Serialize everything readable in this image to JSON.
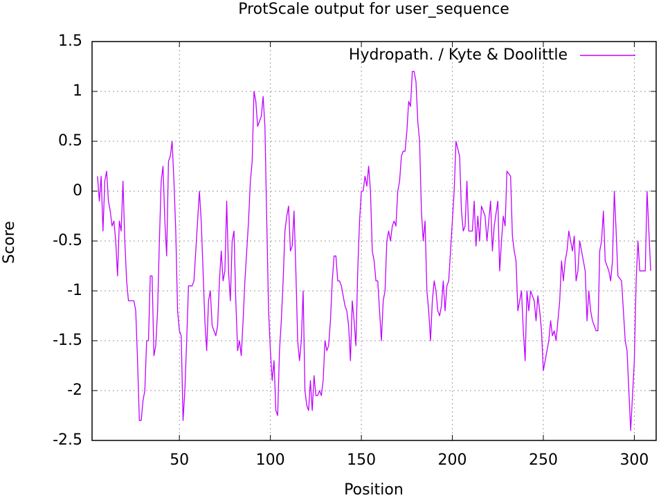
{
  "chart_data": {
    "type": "line",
    "title": "ProtScale output for user_sequence",
    "x_label": "Position",
    "y_label": "Score",
    "grid": true,
    "legend": "top-right",
    "xlim": [
      2,
      312
    ],
    "ylim": [
      -2.5,
      1.5
    ],
    "xticks": [
      50,
      100,
      150,
      200,
      250,
      300
    ],
    "yticks": [
      1.5,
      1,
      0.5,
      0,
      -0.5,
      -1,
      -1.5,
      -2,
      -2.5
    ],
    "x": [
      5,
      6,
      7,
      8,
      9,
      10,
      11,
      12,
      13,
      14,
      15,
      16,
      17,
      18,
      19,
      20,
      21,
      22,
      23,
      24,
      25,
      26,
      27,
      28,
      29,
      30,
      31,
      32,
      33,
      34,
      35,
      36,
      37,
      38,
      39,
      40,
      41,
      42,
      43,
      44,
      45,
      46,
      47,
      48,
      49,
      50,
      51,
      52,
      53,
      54,
      55,
      56,
      57,
      58,
      59,
      60,
      61,
      62,
      63,
      64,
      65,
      66,
      67,
      68,
      69,
      70,
      71,
      72,
      73,
      74,
      75,
      76,
      77,
      78,
      79,
      80,
      81,
      82,
      83,
      84,
      85,
      86,
      87,
      88,
      89,
      90,
      91,
      92,
      93,
      94,
      95,
      96,
      97,
      98,
      99,
      100,
      101,
      102,
      103,
      104,
      105,
      106,
      107,
      108,
      109,
      110,
      111,
      112,
      113,
      114,
      115,
      116,
      117,
      118,
      119,
      120,
      121,
      122,
      123,
      124,
      125,
      126,
      127,
      128,
      129,
      130,
      131,
      132,
      133,
      134,
      135,
      136,
      137,
      138,
      139,
      140,
      141,
      142,
      143,
      144,
      145,
      146,
      147,
      148,
      149,
      150,
      151,
      152,
      153,
      154,
      155,
      156,
      157,
      158,
      159,
      160,
      161,
      162,
      163,
      164,
      165,
      166,
      167,
      168,
      169,
      170,
      171,
      172,
      173,
      174,
      175,
      176,
      177,
      178,
      179,
      180,
      181,
      182,
      183,
      184,
      185,
      186,
      187,
      188,
      189,
      190,
      191,
      192,
      193,
      194,
      195,
      196,
      197,
      198,
      199,
      200,
      201,
      202,
      204,
      205,
      206,
      207,
      208,
      209,
      211,
      212,
      213,
      214,
      215,
      216,
      218,
      219,
      220,
      221,
      222,
      223,
      225,
      226,
      227,
      228,
      229,
      230,
      232,
      233,
      234,
      235,
      236,
      238,
      239,
      240,
      241,
      242,
      243,
      245,
      246,
      247,
      248,
      249,
      250,
      252,
      253,
      254,
      255,
      256,
      257,
      259,
      260,
      261,
      262,
      263,
      264,
      266,
      267,
      268,
      269,
      270,
      272,
      273,
      274,
      275,
      276,
      277,
      279,
      280,
      281,
      282,
      283,
      284,
      286,
      287,
      288,
      289,
      290,
      291,
      293,
      294,
      295,
      296,
      297,
      298,
      300,
      301,
      302,
      303,
      304,
      306,
      307,
      308,
      309
    ],
    "series": [
      {
        "name": "Hydropath. / Kyte & Doolittle",
        "color": "#c000ff",
        "values": [
          0.15,
          -0.1,
          0.15,
          -0.4,
          0.1,
          0.2,
          -0.1,
          -0.2,
          -0.35,
          -0.3,
          -0.5,
          -0.85,
          -0.3,
          -0.4,
          0.1,
          -0.5,
          -0.9,
          -1.1,
          -1.1,
          -1.1,
          -1.1,
          -1.2,
          -1.7,
          -2.3,
          -2.3,
          -2.1,
          -2.0,
          -1.5,
          -1.5,
          -0.85,
          -0.85,
          -1.65,
          -1.55,
          -1.2,
          -0.5,
          0.1,
          0.25,
          -0.3,
          -0.65,
          0.3,
          0.35,
          0.5,
          0.1,
          -0.4,
          -1.2,
          -1.4,
          -1.45,
          -2.3,
          -2.0,
          -1.5,
          -0.95,
          -0.95,
          -0.95,
          -0.9,
          -0.6,
          -0.3,
          0.0,
          -0.3,
          -0.8,
          -1.3,
          -1.6,
          -1.1,
          -1.0,
          -1.35,
          -1.4,
          -1.45,
          -1.35,
          -0.9,
          -0.6,
          -0.9,
          -0.8,
          -0.1,
          -0.8,
          -1.1,
          -0.5,
          -0.4,
          -1.1,
          -1.6,
          -1.5,
          -1.65,
          -1.3,
          -0.9,
          -0.6,
          -0.3,
          0.1,
          0.3,
          1.0,
          0.9,
          0.65,
          0.7,
          0.75,
          0.95,
          0.65,
          -0.3,
          -1.2,
          -1.6,
          -1.9,
          -1.7,
          -2.2,
          -2.25,
          -1.6,
          -1.3,
          -0.9,
          -0.4,
          -0.25,
          -0.15,
          -0.6,
          -0.55,
          -0.2,
          -0.8,
          -1.5,
          -1.7,
          -1.5,
          -1.0,
          -2.0,
          -2.15,
          -2.2,
          -1.9,
          -2.2,
          -1.85,
          -2.05,
          -2.05,
          -2.0,
          -2.05,
          -1.9,
          -1.5,
          -1.6,
          -1.55,
          -1.3,
          -0.9,
          -0.65,
          -0.65,
          -0.9,
          -0.9,
          -0.95,
          -1.05,
          -1.15,
          -1.2,
          -1.35,
          -1.7,
          -1.1,
          -1.3,
          -1.55,
          -0.8,
          -0.3,
          0.0,
          0.0,
          0.15,
          0.05,
          0.25,
          0.0,
          -0.6,
          -0.7,
          -0.9,
          -0.9,
          -1.2,
          -1.5,
          -1.1,
          -1.0,
          -0.5,
          -0.4,
          -0.5,
          -0.35,
          -0.3,
          -0.35,
          0.0,
          0.1,
          0.35,
          0.4,
          0.4,
          0.6,
          0.9,
          0.85,
          1.2,
          1.2,
          1.1,
          0.7,
          0.5,
          -0.2,
          -0.5,
          -0.3,
          -1.0,
          -1.2,
          -1.5,
          -1.1,
          -0.9,
          -1.0,
          -1.2,
          -1.25,
          -1.15,
          -0.9,
          -1.2,
          -0.95,
          -0.9,
          -0.6,
          -0.3,
          0.0,
          0.5,
          0.35,
          -0.2,
          -0.4,
          -0.35,
          0.1,
          -0.4,
          -0.4,
          -0.1,
          -0.55,
          -0.25,
          -0.5,
          -0.15,
          -0.25,
          -0.5,
          -0.3,
          -0.1,
          -0.6,
          -0.35,
          -0.1,
          -0.8,
          -0.5,
          -0.25,
          -0.35,
          0.2,
          0.15,
          -0.45,
          -0.6,
          -0.7,
          -1.2,
          -1.0,
          -1.4,
          -1.7,
          -1.0,
          -1.2,
          -1.0,
          -1.1,
          -1.3,
          -1.05,
          -1.2,
          -1.4,
          -1.8,
          -1.6,
          -1.5,
          -1.3,
          -1.45,
          -1.4,
          -1.5,
          -1.1,
          -0.7,
          -0.9,
          -0.7,
          -0.6,
          -0.4,
          -0.6,
          -0.45,
          -0.9,
          -0.8,
          -0.5,
          -0.7,
          -0.8,
          -1.3,
          -1.0,
          -1.2,
          -1.3,
          -1.4,
          -1.4,
          -0.6,
          -0.5,
          -0.2,
          -0.7,
          -0.8,
          -0.9,
          -0.7,
          0.0,
          -0.4,
          -0.85,
          -0.9,
          -1.2,
          -1.5,
          -1.6,
          -2.0,
          -2.4,
          -1.7,
          -0.9,
          -0.5,
          -0.8,
          -0.8,
          -0.8,
          0.0,
          -0.4,
          -0.8
        ]
      }
    ]
  }
}
